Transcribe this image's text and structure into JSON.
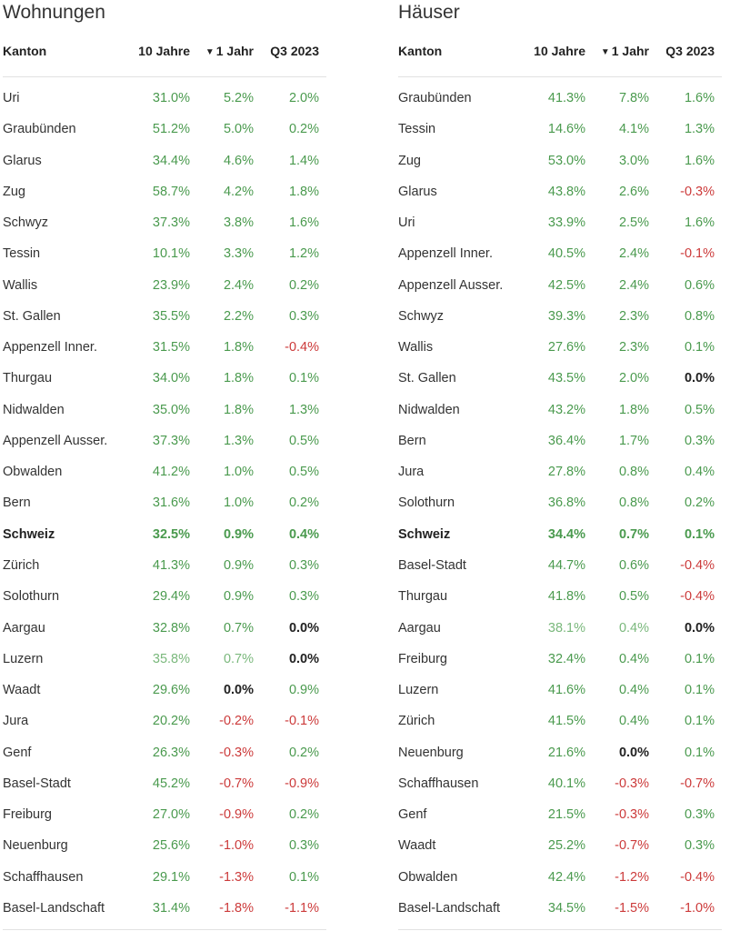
{
  "chart_data": [
    {
      "type": "table",
      "title": "Wohnungen",
      "columns": [
        "Kanton",
        "10 Jahre",
        "1 Jahr",
        "Q3 2023"
      ],
      "sort_column": "1 Jahr",
      "rows": [
        {
          "name": "Uri",
          "y10": "31.0%",
          "y1": "5.2%",
          "q3": "2.0%"
        },
        {
          "name": "Graubünden",
          "y10": "51.2%",
          "y1": "5.0%",
          "q3": "0.2%"
        },
        {
          "name": "Glarus",
          "y10": "34.4%",
          "y1": "4.6%",
          "q3": "1.4%"
        },
        {
          "name": "Zug",
          "y10": "58.7%",
          "y1": "4.2%",
          "q3": "1.8%"
        },
        {
          "name": "Schwyz",
          "y10": "37.3%",
          "y1": "3.8%",
          "q3": "1.6%"
        },
        {
          "name": "Tessin",
          "y10": "10.1%",
          "y1": "3.3%",
          "q3": "1.2%"
        },
        {
          "name": "Wallis",
          "y10": "23.9%",
          "y1": "2.4%",
          "q3": "0.2%"
        },
        {
          "name": "St. Gallen",
          "y10": "35.5%",
          "y1": "2.2%",
          "q3": "0.3%"
        },
        {
          "name": "Appenzell Inner.",
          "y10": "31.5%",
          "y1": "1.8%",
          "q3": "-0.4%"
        },
        {
          "name": "Thurgau",
          "y10": "34.0%",
          "y1": "1.8%",
          "q3": "0.1%"
        },
        {
          "name": "Nidwalden",
          "y10": "35.0%",
          "y1": "1.8%",
          "q3": "1.3%"
        },
        {
          "name": "Appenzell Ausser.",
          "y10": "37.3%",
          "y1": "1.3%",
          "q3": "0.5%"
        },
        {
          "name": "Obwalden",
          "y10": "41.2%",
          "y1": "1.0%",
          "q3": "0.5%"
        },
        {
          "name": "Bern",
          "y10": "31.6%",
          "y1": "1.0%",
          "q3": "0.2%"
        },
        {
          "name": "Schweiz",
          "y10": "32.5%",
          "y1": "0.9%",
          "q3": "0.4%",
          "highlight": true
        },
        {
          "name": "Zürich",
          "y10": "41.3%",
          "y1": "0.9%",
          "q3": "0.3%"
        },
        {
          "name": "Solothurn",
          "y10": "29.4%",
          "y1": "0.9%",
          "q3": "0.3%"
        },
        {
          "name": "Aargau",
          "y10": "32.8%",
          "y1": "0.7%",
          "q3": "0.0%"
        },
        {
          "name": "Luzern",
          "y10": "35.8%",
          "y1": "0.7%",
          "q3": "0.0%",
          "muted": true
        },
        {
          "name": "Waadt",
          "y10": "29.6%",
          "y1": "0.0%",
          "q3": "0.9%"
        },
        {
          "name": "Jura",
          "y10": "20.2%",
          "y1": "-0.2%",
          "q3": "-0.1%"
        },
        {
          "name": "Genf",
          "y10": "26.3%",
          "y1": "-0.3%",
          "q3": "0.2%"
        },
        {
          "name": "Basel-Stadt",
          "y10": "45.2%",
          "y1": "-0.7%",
          "q3": "-0.9%"
        },
        {
          "name": "Freiburg",
          "y10": "27.0%",
          "y1": "-0.9%",
          "q3": "0.2%"
        },
        {
          "name": "Neuenburg",
          "y10": "25.6%",
          "y1": "-1.0%",
          "q3": "0.3%"
        },
        {
          "name": "Schaffhausen",
          "y10": "29.1%",
          "y1": "-1.3%",
          "q3": "0.1%"
        },
        {
          "name": "Basel-Landschaft",
          "y10": "31.4%",
          "y1": "-1.8%",
          "q3": "-1.1%"
        }
      ]
    },
    {
      "type": "table",
      "title": "Häuser",
      "columns": [
        "Kanton",
        "10 Jahre",
        "1 Jahr",
        "Q3 2023"
      ],
      "sort_column": "1 Jahr",
      "rows": [
        {
          "name": "Graubünden",
          "y10": "41.3%",
          "y1": "7.8%",
          "q3": "1.6%"
        },
        {
          "name": "Tessin",
          "y10": "14.6%",
          "y1": "4.1%",
          "q3": "1.3%"
        },
        {
          "name": "Zug",
          "y10": "53.0%",
          "y1": "3.0%",
          "q3": "1.6%"
        },
        {
          "name": "Glarus",
          "y10": "43.8%",
          "y1": "2.6%",
          "q3": "-0.3%"
        },
        {
          "name": "Uri",
          "y10": "33.9%",
          "y1": "2.5%",
          "q3": "1.6%"
        },
        {
          "name": "Appenzell Inner.",
          "y10": "40.5%",
          "y1": "2.4%",
          "q3": "-0.1%"
        },
        {
          "name": "Appenzell Ausser.",
          "y10": "42.5%",
          "y1": "2.4%",
          "q3": "0.6%"
        },
        {
          "name": "Schwyz",
          "y10": "39.3%",
          "y1": "2.3%",
          "q3": "0.8%"
        },
        {
          "name": "Wallis",
          "y10": "27.6%",
          "y1": "2.3%",
          "q3": "0.1%"
        },
        {
          "name": "St. Gallen",
          "y10": "43.5%",
          "y1": "2.0%",
          "q3": "0.0%"
        },
        {
          "name": "Nidwalden",
          "y10": "43.2%",
          "y1": "1.8%",
          "q3": "0.5%"
        },
        {
          "name": "Bern",
          "y10": "36.4%",
          "y1": "1.7%",
          "q3": "0.3%"
        },
        {
          "name": "Jura",
          "y10": "27.8%",
          "y1": "0.8%",
          "q3": "0.4%"
        },
        {
          "name": "Solothurn",
          "y10": "36.8%",
          "y1": "0.8%",
          "q3": "0.2%"
        },
        {
          "name": "Schweiz",
          "y10": "34.4%",
          "y1": "0.7%",
          "q3": "0.1%",
          "highlight": true
        },
        {
          "name": "Basel-Stadt",
          "y10": "44.7%",
          "y1": "0.6%",
          "q3": "-0.4%"
        },
        {
          "name": "Thurgau",
          "y10": "41.8%",
          "y1": "0.5%",
          "q3": "-0.4%"
        },
        {
          "name": "Aargau",
          "y10": "38.1%",
          "y1": "0.4%",
          "q3": "0.0%",
          "muted": true
        },
        {
          "name": "Freiburg",
          "y10": "32.4%",
          "y1": "0.4%",
          "q3": "0.1%"
        },
        {
          "name": "Luzern",
          "y10": "41.6%",
          "y1": "0.4%",
          "q3": "0.1%"
        },
        {
          "name": "Zürich",
          "y10": "41.5%",
          "y1": "0.4%",
          "q3": "0.1%"
        },
        {
          "name": "Neuenburg",
          "y10": "21.6%",
          "y1": "0.0%",
          "q3": "0.1%"
        },
        {
          "name": "Schaffhausen",
          "y10": "40.1%",
          "y1": "-0.3%",
          "q3": "-0.7%"
        },
        {
          "name": "Genf",
          "y10": "21.5%",
          "y1": "-0.3%",
          "q3": "0.3%"
        },
        {
          "name": "Waadt",
          "y10": "25.2%",
          "y1": "-0.7%",
          "q3": "0.3%"
        },
        {
          "name": "Obwalden",
          "y10": "42.4%",
          "y1": "-1.2%",
          "q3": "-0.4%"
        },
        {
          "name": "Basel-Landschaft",
          "y10": "34.5%",
          "y1": "-1.5%",
          "q3": "-1.0%"
        }
      ]
    }
  ],
  "colors": {
    "positive": "#4a9a4e",
    "positive_muted": "#7ab87c",
    "negative": "#cc3a3a",
    "zero": "#222222",
    "rule": "#e2e2e2"
  },
  "icons": {
    "sort": "sort-desc-icon"
  }
}
